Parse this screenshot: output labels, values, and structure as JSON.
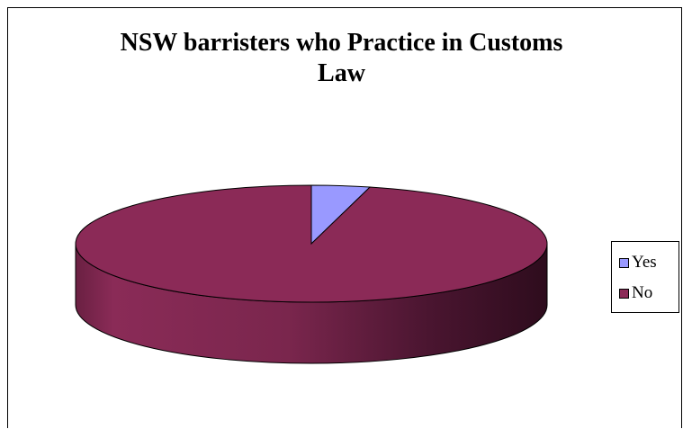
{
  "chart_data": {
    "type": "pie",
    "title_lines": [
      "NSW barristers who Practice in Customs",
      "Law"
    ],
    "title": "NSW barristers who Practice in Customs Law",
    "categories": [
      "Yes",
      "No"
    ],
    "values": [
      4,
      96
    ],
    "colors": [
      "#9999ff",
      "#8b2a57"
    ],
    "legend_placement": "right",
    "three_d": true
  }
}
